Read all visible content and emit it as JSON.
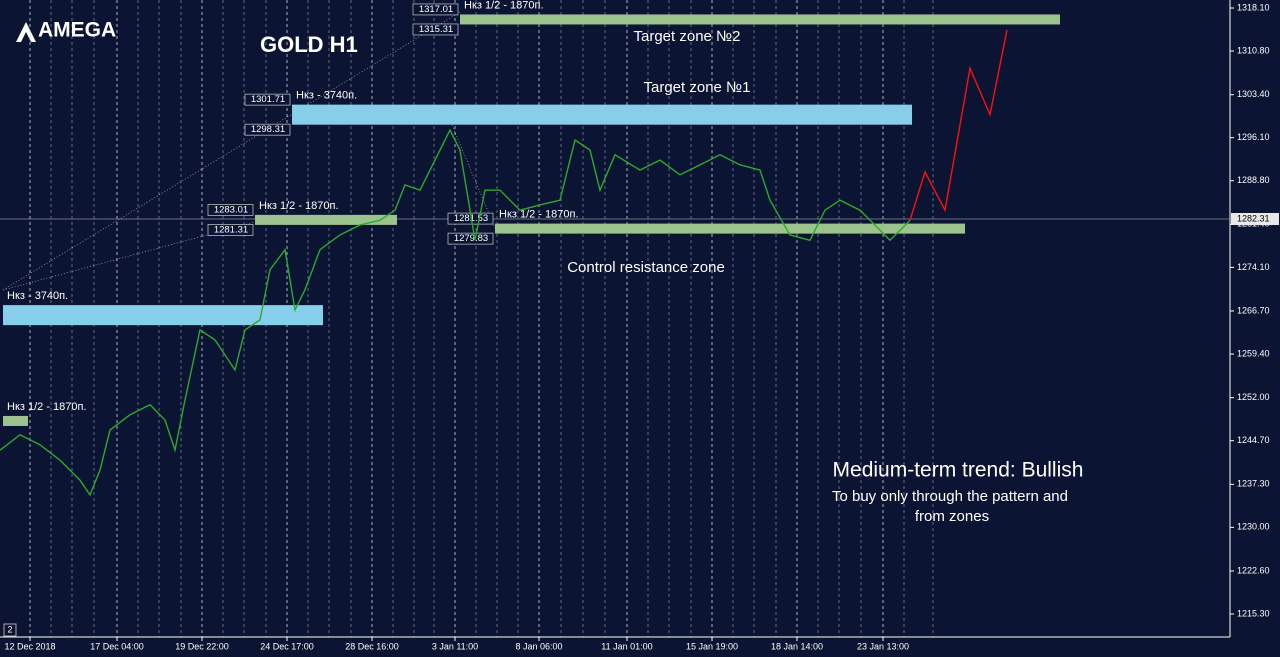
{
  "chart_data": {
    "type": "line",
    "title": "GOLD H1",
    "brand": "AMEGA",
    "xlim": [
      0,
      1230
    ],
    "ylim": [
      1211.4,
      1319.46
    ],
    "xticks": [
      {
        "value": 30,
        "label": "12 Dec 2018"
      },
      {
        "value": 117,
        "label": "17 Dec 04:00"
      },
      {
        "value": 202,
        "label": "19 Dec 22:00"
      },
      {
        "value": 287,
        "label": "24 Dec 17:00"
      },
      {
        "value": 372,
        "label": "28 Dec 16:00"
      },
      {
        "value": 455,
        "label": "3 Jan 11:00"
      },
      {
        "value": 539,
        "label": "8 Jan 06:00"
      },
      {
        "value": 627,
        "label": "11 Jan 01:00"
      },
      {
        "value": 712,
        "label": "15 Jan 19:00"
      },
      {
        "value": 797,
        "label": "18 Jan 14:00"
      },
      {
        "value": 883,
        "label": "23 Jan 13:00"
      }
    ],
    "yticks": [
      {
        "value": 1318.1,
        "label": "1318.10"
      },
      {
        "value": 1310.8,
        "label": "1310.80"
      },
      {
        "value": 1303.4,
        "label": "1303.40"
      },
      {
        "value": 1296.1,
        "label": "1296.10"
      },
      {
        "value": 1288.8,
        "label": "1288.80"
      },
      {
        "value": 1281.4,
        "label": "1281.40"
      },
      {
        "value": 1274.1,
        "label": "1274.10"
      },
      {
        "value": 1266.7,
        "label": "1266.70"
      },
      {
        "value": 1259.4,
        "label": "1259.40"
      },
      {
        "value": 1252.0,
        "label": "1252.00"
      },
      {
        "value": 1244.7,
        "label": "1244.70"
      },
      {
        "value": 1237.3,
        "label": "1237.30"
      },
      {
        "value": 1230.0,
        "label": "1230.00"
      },
      {
        "value": 1222.6,
        "label": "1222.60"
      },
      {
        "value": 1215.3,
        "label": "1215.30"
      }
    ],
    "grid": true,
    "last_price": 1282.31,
    "series": [
      {
        "color": "#2ea82e",
        "x": [
          0,
          20,
          40,
          60,
          80,
          90,
          100,
          110,
          130,
          150,
          165,
          175,
          185,
          200,
          215,
          235,
          245,
          260,
          270,
          285,
          295,
          305,
          320,
          340,
          360,
          380,
          395,
          405,
          420,
          435,
          450,
          460,
          475,
          485,
          500,
          520,
          540,
          560,
          575,
          590,
          600,
          615,
          640,
          660,
          680,
          700,
          720,
          740,
          760,
          770,
          790,
          810,
          825,
          840,
          860,
          875,
          890,
          910
        ],
        "values": [
          1243.1,
          1245.7,
          1244.0,
          1241.4,
          1238.0,
          1235.5,
          1239.7,
          1246.5,
          1249.1,
          1250.8,
          1248.2,
          1243.1,
          1251.6,
          1263.5,
          1261.8,
          1256.7,
          1263.5,
          1265.2,
          1273.7,
          1277.1,
          1266.9,
          1270.3,
          1277.1,
          1279.6,
          1281.3,
          1282.1,
          1283.8,
          1288.1,
          1287.2,
          1292.3,
          1297.4,
          1294.0,
          1278.7,
          1287.2,
          1287.2,
          1283.8,
          1284.7,
          1285.5,
          1295.7,
          1294.0,
          1287.2,
          1293.2,
          1290.6,
          1292.3,
          1289.8,
          1291.5,
          1293.2,
          1291.5,
          1290.6,
          1285.5,
          1279.6,
          1278.7,
          1283.8,
          1285.5,
          1283.8,
          1281.3,
          1278.7,
          1282.1
        ]
      },
      {
        "color": "#ff1010",
        "x": [
          910,
          925,
          945,
          970,
          990,
          1007
        ],
        "values": [
          1282.1,
          1290.3,
          1283.8,
          1307.9,
          1300.0,
          1314.4
        ]
      }
    ],
    "zones": [
      {
        "label": "Нкз 1/2 - 1870п.",
        "top": 1317.01,
        "bottom": 1315.31,
        "x0": 460,
        "x1": 1060,
        "color": "#9cc38e",
        "top_label": "1317.01",
        "bottom_label": "1315.31"
      },
      {
        "label": "Нкз - 3740п.",
        "top": 1301.71,
        "bottom": 1298.31,
        "x0": 292,
        "x1": 912,
        "color": "#87ceeb",
        "top_label": "1301.71",
        "bottom_label": "1298.31"
      },
      {
        "label": "Нкз 1/2 - 1870п.",
        "top": 1283.01,
        "bottom": 1281.31,
        "x0": 255,
        "x1": 397,
        "color": "#9cc38e",
        "top_label": "1283.01",
        "bottom_label": "1281.31"
      },
      {
        "label": "Нкз 1/2 - 1870п.",
        "top": 1281.53,
        "bottom": 1279.83,
        "x0": 495,
        "x1": 965,
        "color": "#9cc38e",
        "top_label": "1281.53",
        "bottom_label": "1279.83"
      },
      {
        "label": "Нкз - 3740п.",
        "top": 1267.7,
        "bottom": 1264.3,
        "x0": 3,
        "x1": 323,
        "color": "#87ceeb"
      },
      {
        "label": "Нкз 1/2 - 1870п.",
        "top": 1248.9,
        "bottom": 1247.2,
        "x0": 3,
        "x1": 28,
        "color": "#9cc38e"
      }
    ],
    "annotations": [
      "Target zone №2",
      "Target zone №1",
      "Control resistance zone",
      "Medium-term trend: Bullish",
      "To buy only through the pattern  and",
      "from zones"
    ],
    "corner_label": "2"
  }
}
